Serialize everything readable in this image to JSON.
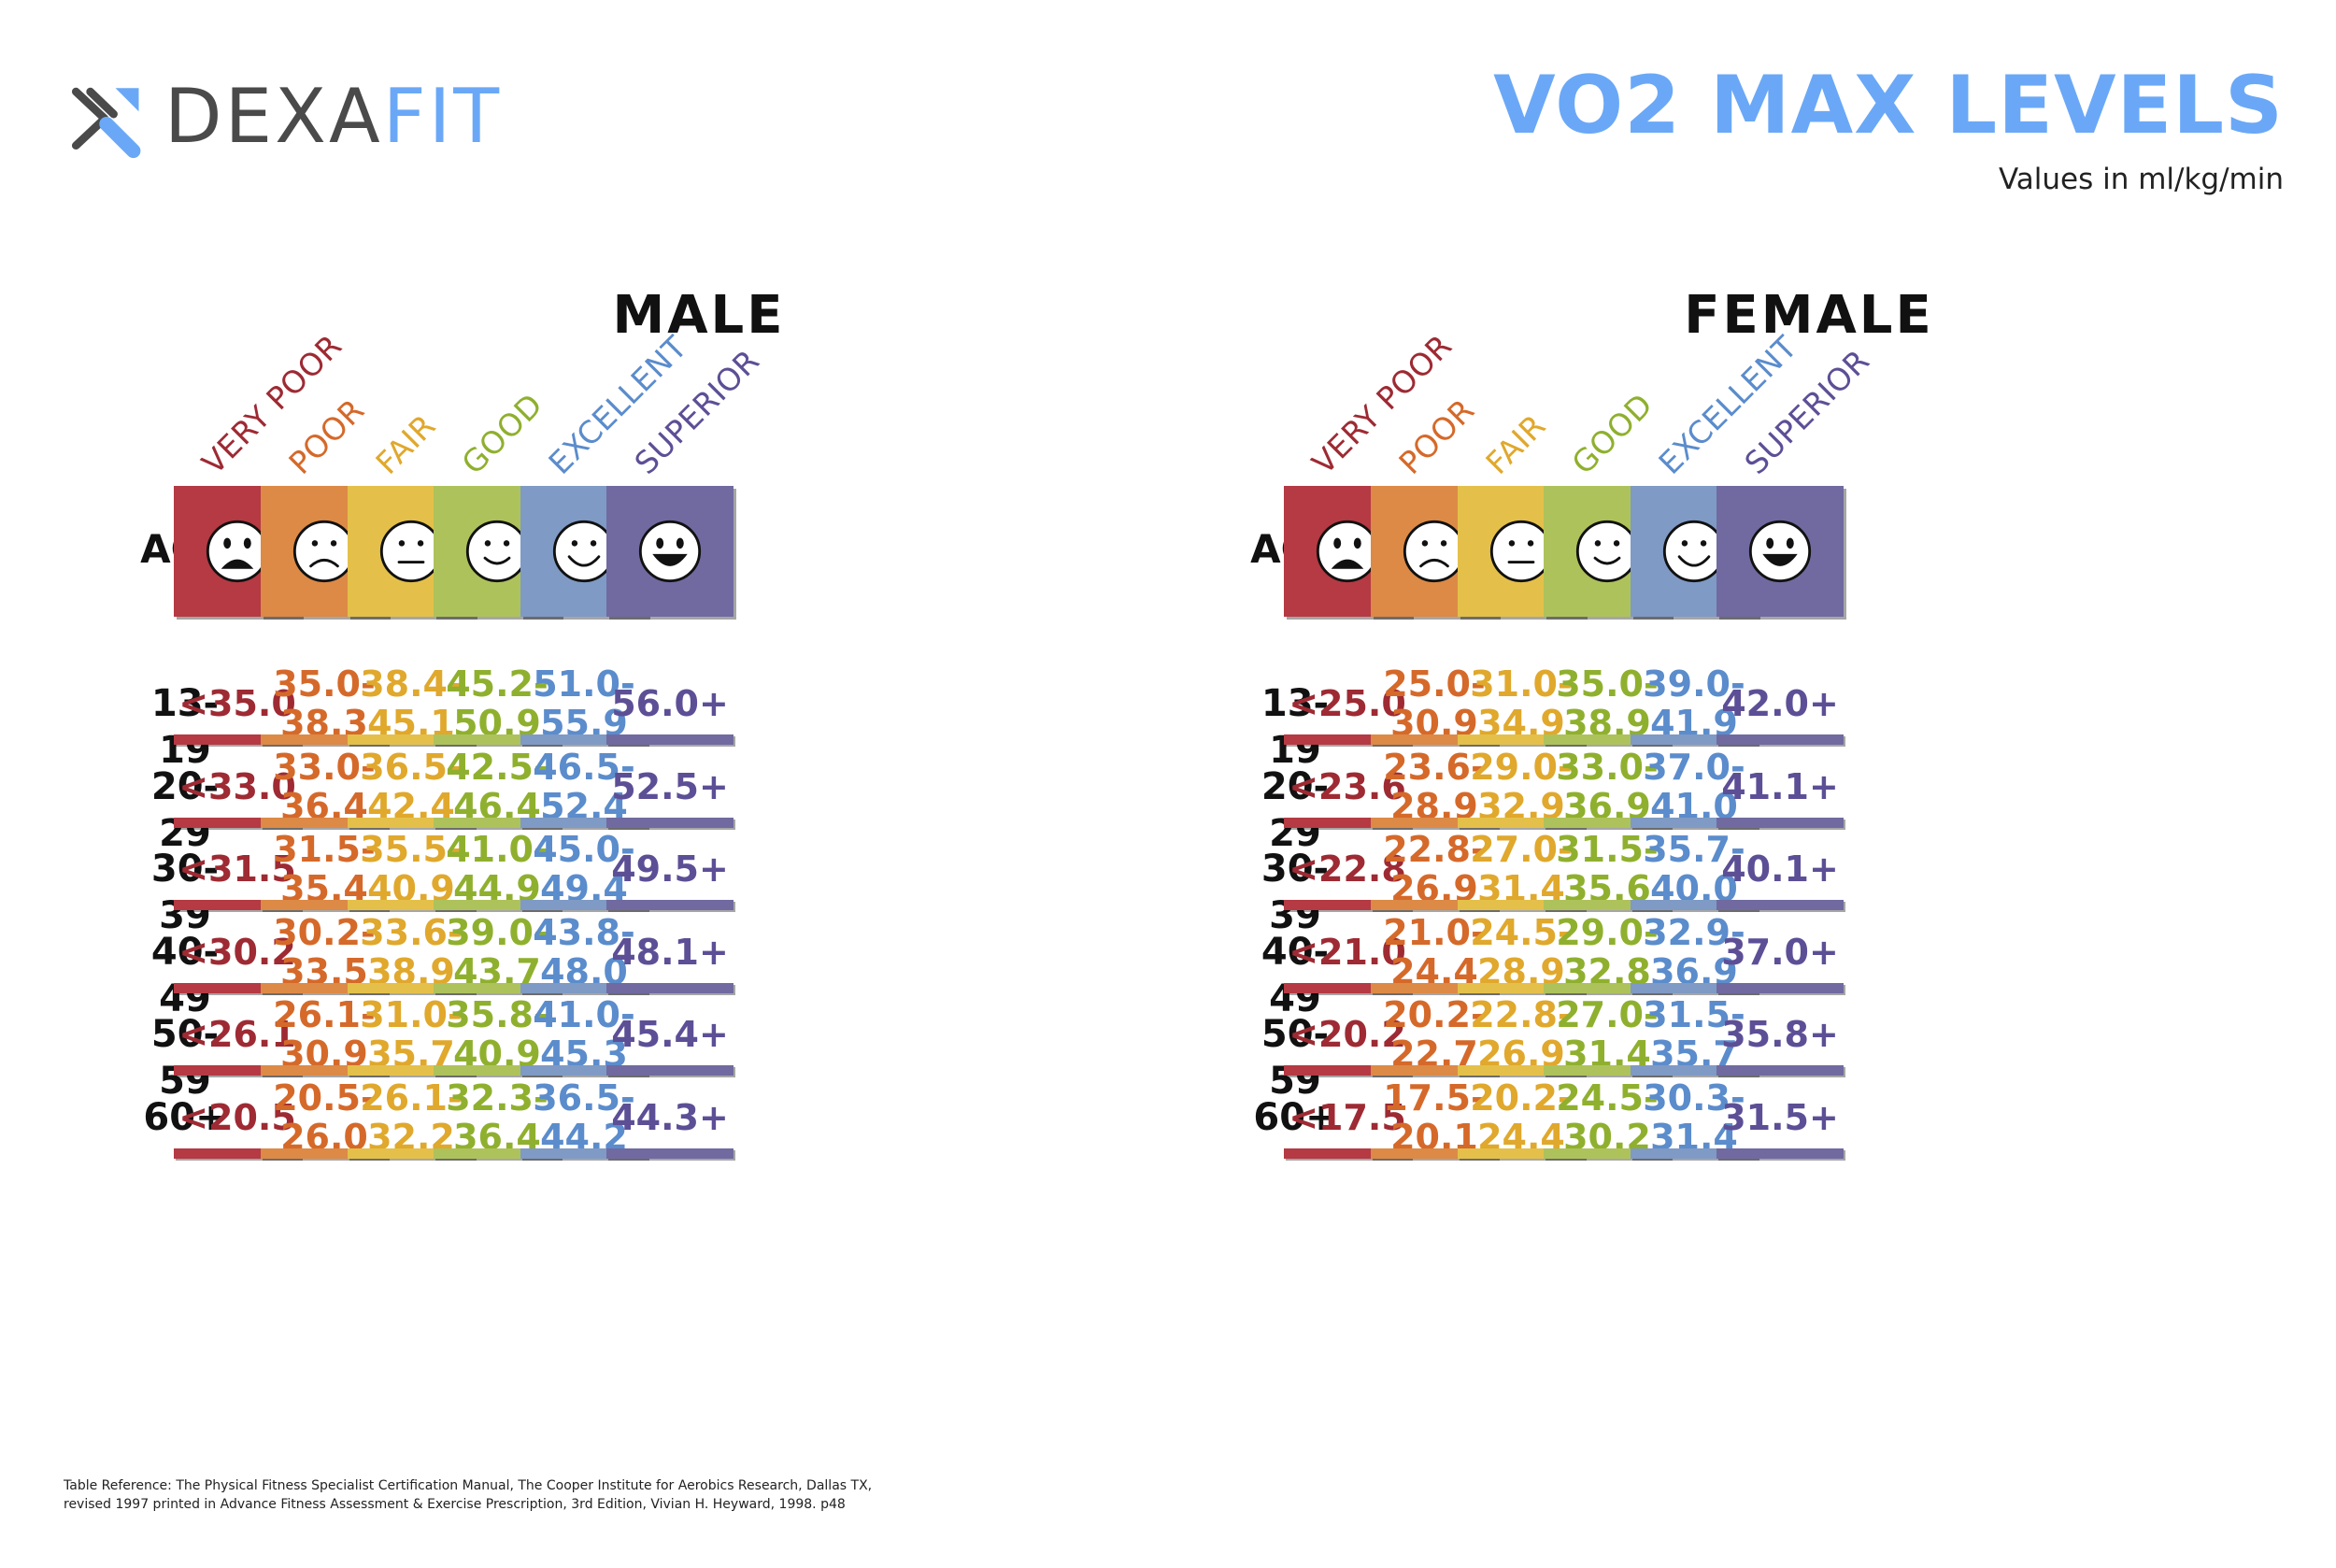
{
  "logo": {
    "text_dexa": "DEXA",
    "text_fit": "FIT",
    "icon": "dexafit-x-icon"
  },
  "title": "VO2 MAX LEVELS",
  "subtitle": "Values in ml/kg/min",
  "age_label": "AGE",
  "categories": [
    {
      "label": "VERY POOR",
      "face": "very-sad-face-icon",
      "color": "#9e2a33",
      "box": "#b53a43"
    },
    {
      "label": "POOR",
      "face": "sad-face-icon",
      "color": "#d5692a",
      "box": "#dc8a46"
    },
    {
      "label": "FAIR",
      "face": "neutral-face-icon",
      "color": "#e0a82c",
      "box": "#e4c04a"
    },
    {
      "label": "GOOD",
      "face": "smile-face-icon",
      "color": "#8fb02e",
      "box": "#aec25b"
    },
    {
      "label": "EXCELLENT",
      "face": "happy-face-icon",
      "color": "#5b8ccc",
      "box": "#7f9ac4"
    },
    {
      "label": "SUPERIOR",
      "face": "grin-face-icon",
      "color": "#5d4f96",
      "box": "#706aa0"
    }
  ],
  "male": {
    "title": "MALE",
    "rows": [
      {
        "age": "13-19",
        "values": [
          "<35.0",
          "35.0-\n38.3",
          "38.4-\n45.1",
          "45.2-\n50.9",
          "51.0-\n55.9",
          "56.0+"
        ]
      },
      {
        "age": "20-29",
        "values": [
          "<33.0",
          "33.0-\n36.4",
          "36.5-\n42.4",
          "42.5-\n46.4",
          "46.5-\n52.4",
          "52.5+"
        ]
      },
      {
        "age": "30-39",
        "values": [
          "<31.5",
          "31.5-\n35.4",
          "35.5-\n40.9",
          "41.0-\n44.9",
          "45.0-\n49.4",
          "49.5+"
        ]
      },
      {
        "age": "40-49",
        "values": [
          "<30.2",
          "30.2-\n33.5",
          "33.6-\n38.9",
          "39.0-\n43.7",
          "43.8-\n48.0",
          "48.1+"
        ]
      },
      {
        "age": "50-59",
        "values": [
          "<26.1",
          "26.1-\n30.9",
          "31.0-\n35.7",
          "35.8-\n40.9",
          "41.0-\n45.3",
          "45.4+"
        ]
      },
      {
        "age": "60+",
        "values": [
          "<20.5",
          "20.5-\n26.0",
          "26.1-\n32.2",
          "32.3-\n36.4",
          "36.5-\n44.2",
          "44.3+"
        ]
      }
    ]
  },
  "female": {
    "title": "FEMALE",
    "rows": [
      {
        "age": "13-19",
        "values": [
          "<25.0",
          "25.0-\n30.9",
          "31.0-\n34.9",
          "35.0-\n38.9",
          "39.0-\n41.9",
          "42.0+"
        ]
      },
      {
        "age": "20-29",
        "values": [
          "<23.6",
          "23.6-\n28.9",
          "29.0-\n32.9",
          "33.0-\n36.9",
          "37.0-\n41.0",
          "41.1+"
        ]
      },
      {
        "age": "30-39",
        "values": [
          "<22.8",
          "22.8-\n26.9",
          "27.0-\n31.4",
          "31.5-\n35.6",
          "35.7-\n40.0",
          "40.1+"
        ]
      },
      {
        "age": "40-49",
        "values": [
          "<21.0",
          "21.0-\n24.4",
          "24.5-\n28.9",
          "29.0-\n32.8",
          "32.9-\n36.9",
          "37.0+"
        ]
      },
      {
        "age": "50-59",
        "values": [
          "<20.2",
          "20.2-\n22.7",
          "22.8-\n26.9",
          "27.0-\n31.4",
          "31.5-\n35.7",
          "35.8+"
        ]
      },
      {
        "age": "60+",
        "values": [
          "<17.5",
          "17.5-\n20.1",
          "20.2-\n24.4",
          "24.5-\n30.2",
          "30.3-\n31.4",
          "31.5+"
        ]
      }
    ]
  },
  "footnote": {
    "line1": "Table Reference: The Physical Fitness Specialist Certification Manual, The Cooper Institute for Aerobics Research, Dallas TX,",
    "line2": "revised 1997 printed in Advance Fitness Assessment & Exercise Prescription, 3rd Edition, Vivian H. Heyward, 1998. p48"
  }
}
